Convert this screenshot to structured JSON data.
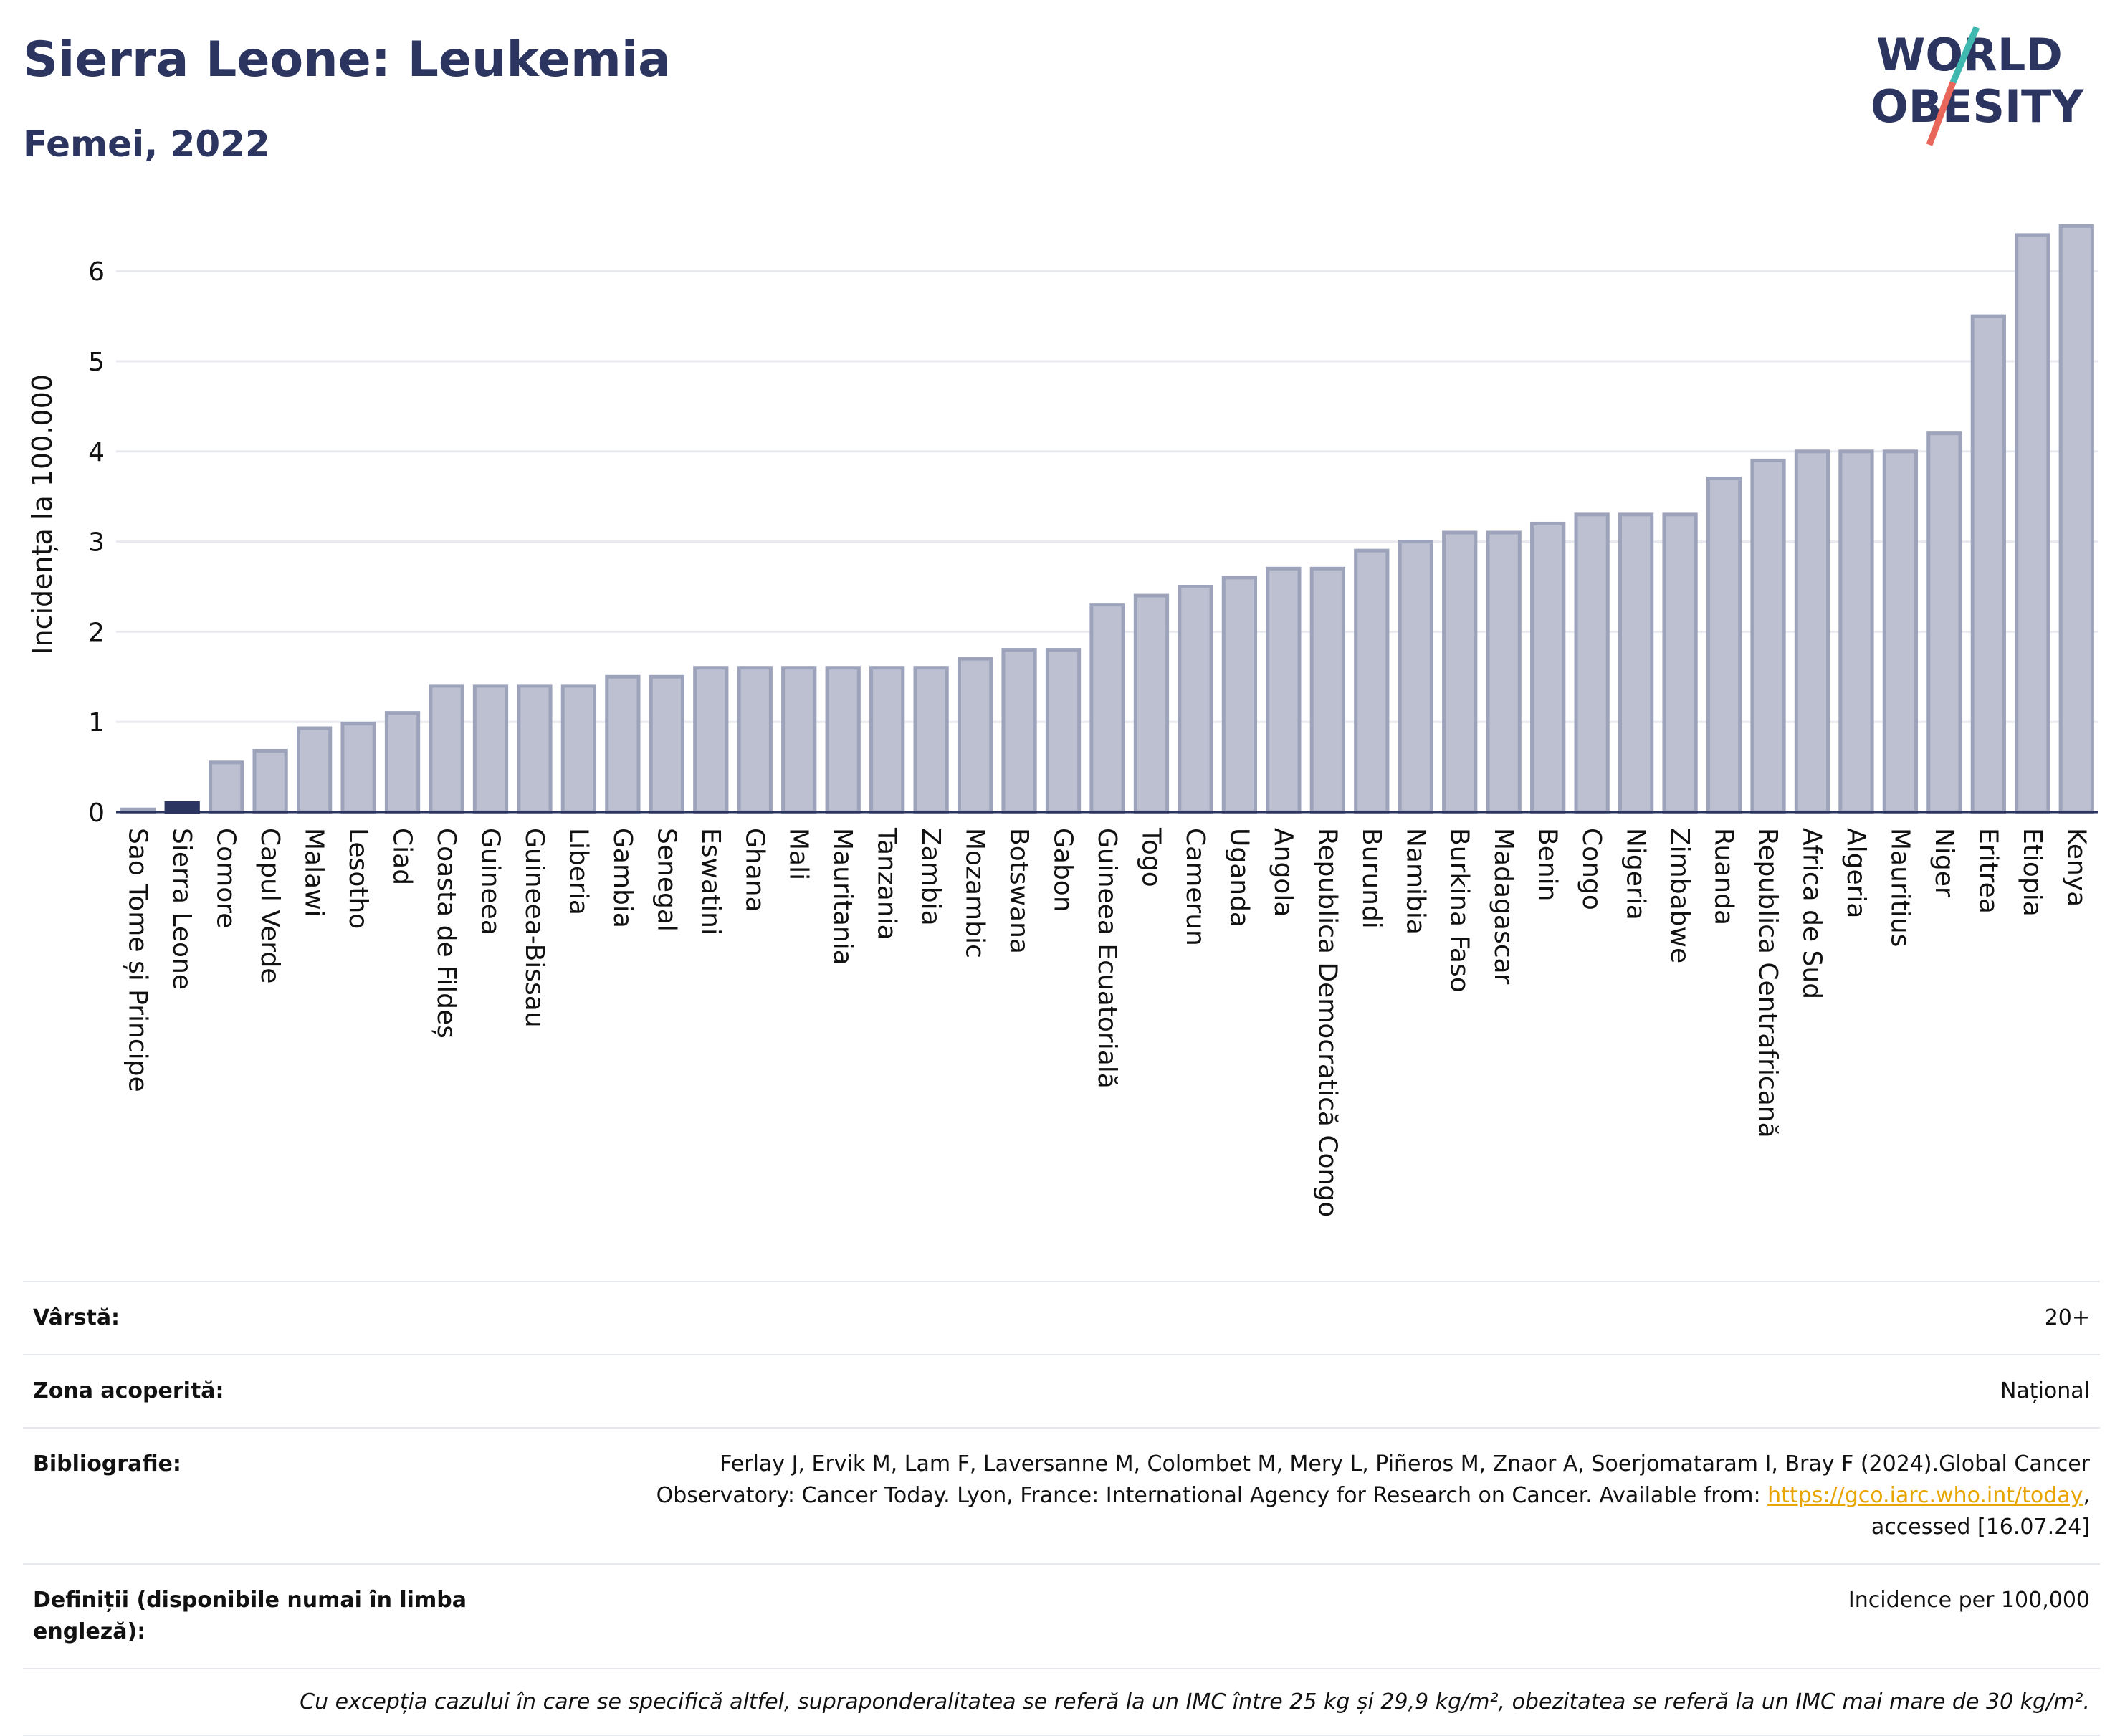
{
  "header": {
    "title": "Sierra Leone: Leukemia",
    "subtitle": "Femei, 2022",
    "logo_line1": "WORLD",
    "logo_line2": "OBESITY"
  },
  "colors": {
    "bar": "#bcc0d0",
    "bar_edge": "#9da3bb",
    "highlight": "#2b3560",
    "title": "#2b3560",
    "grid": "#e8eaf0"
  },
  "chart_data": {
    "type": "bar",
    "ylabel": "Incidența la 100.000",
    "ylim": [
      0,
      6.6
    ],
    "yticks": [
      0,
      1,
      2,
      3,
      4,
      5,
      6
    ],
    "highlight": "Sierra Leone",
    "categories": [
      "Sao Tome și Principe",
      "Sierra Leone",
      "Comore",
      "Capul Verde",
      "Malawi",
      "Lesotho",
      "Ciad",
      "Coasta de Fildeș",
      "Guineea",
      "Guineea-Bissau",
      "Liberia",
      "Gambia",
      "Senegal",
      "Eswatini",
      "Ghana",
      "Mali",
      "Mauritania",
      "Tanzania",
      "Zambia",
      "Mozambic",
      "Botswana",
      "Gabon",
      "Guineea Ecuatorială",
      "Togo",
      "Camerun",
      "Uganda",
      "Angola",
      "Republica Democratică Congo",
      "Burundi",
      "Namibia",
      "Burkina Faso",
      "Madagascar",
      "Benin",
      "Congo",
      "Nigeria",
      "Zimbabwe",
      "Ruanda",
      "Republica Centrafricană",
      "Africa de Sud",
      "Algeria",
      "Mauritius",
      "Niger",
      "Eritrea",
      "Etiopia",
      "Kenya"
    ],
    "values": [
      0.03,
      0.1,
      0.55,
      0.68,
      0.93,
      0.98,
      1.1,
      1.4,
      1.4,
      1.4,
      1.4,
      1.5,
      1.5,
      1.6,
      1.6,
      1.6,
      1.6,
      1.6,
      1.6,
      1.7,
      1.8,
      1.8,
      2.3,
      2.4,
      2.5,
      2.6,
      2.7,
      2.7,
      2.9,
      3.0,
      3.1,
      3.1,
      3.2,
      3.3,
      3.3,
      3.3,
      3.7,
      3.9,
      4.0,
      4.0,
      4.0,
      4.2,
      5.5,
      6.4,
      6.5
    ]
  },
  "info": {
    "age_label": "Vârstă:",
    "age_value": "20+",
    "coverage_label": "Zona acoperită:",
    "coverage_value": "Național",
    "bibliography_label": "Bibliografie:",
    "bibliography_line1": "Ferlay J, Ervik M, Lam F, Laversanne M, Colombet M, Mery L, Piñeros M, Znaor A, Soerjomataram I, Bray F (2024).Global Cancer",
    "bibliography_line2_pre": "Observatory: Cancer Today. Lyon, France: International Agency for Research on Cancer. Available from: ",
    "bibliography_link": "https://gco.iarc.who.int/today",
    "bibliography_line2_post": ",",
    "bibliography_line3": "accessed [16.07.24]",
    "definitions_label": "Definiții (disponibile numai în limba engleză):",
    "definitions_value": "Incidence per 100,000",
    "note": "Cu excepția cazului în care se specifică altfel, supraponderalitatea se referă la un IMC între 25 kg și 29,9 kg/m², obezitatea se referă la un IMC mai mare de 30 kg/m²."
  }
}
